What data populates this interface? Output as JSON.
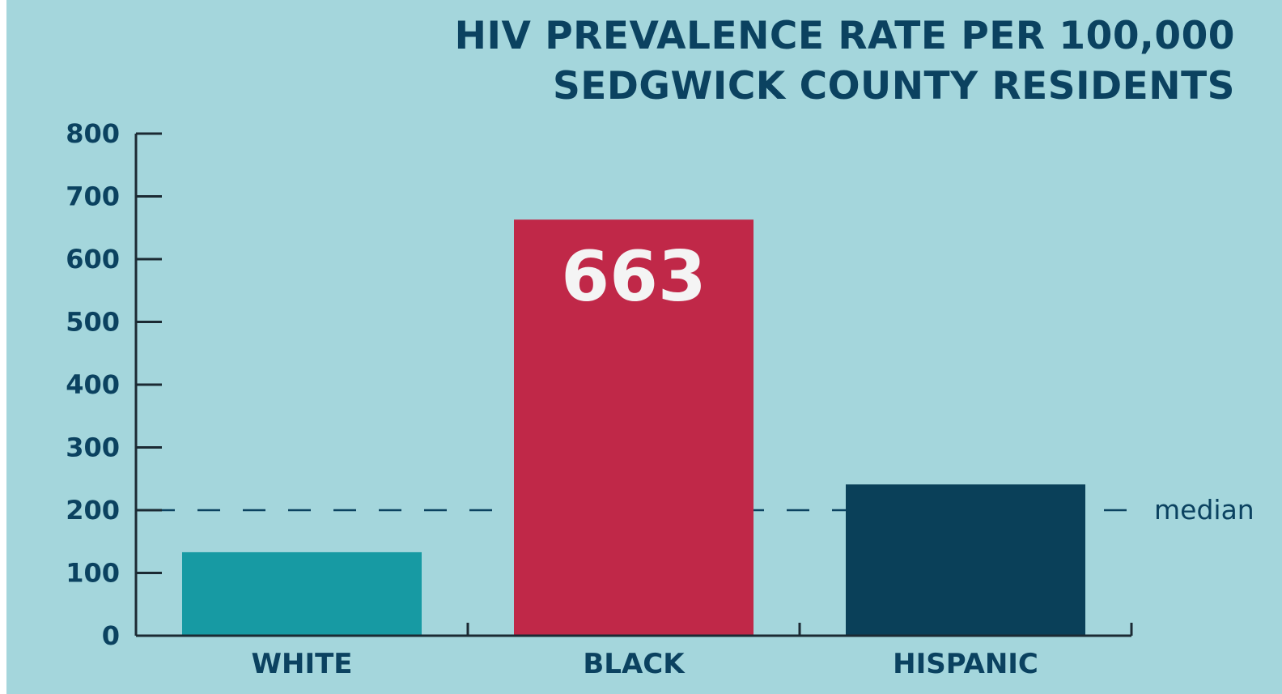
{
  "chart_data": {
    "type": "bar",
    "title_lines": [
      "HIV PREVALENCE RATE PER 100,000",
      "SEDGWICK COUNTY RESIDENTS"
    ],
    "categories": [
      "WHITE",
      "BLACK",
      "HISPANIC"
    ],
    "values": [
      133,
      663,
      241
    ],
    "data_labels": [
      "",
      "663",
      ""
    ],
    "colors": [
      "#179aa3",
      "#c02848",
      "#0a4059"
    ],
    "ylim": [
      0,
      800
    ],
    "yticks": [
      0,
      100,
      200,
      300,
      400,
      500,
      600,
      700,
      800
    ],
    "reference_line": {
      "value": 200,
      "label": "median",
      "style": "dashed"
    },
    "grid": false,
    "legend": "none",
    "xlabel": "",
    "ylabel": ""
  }
}
